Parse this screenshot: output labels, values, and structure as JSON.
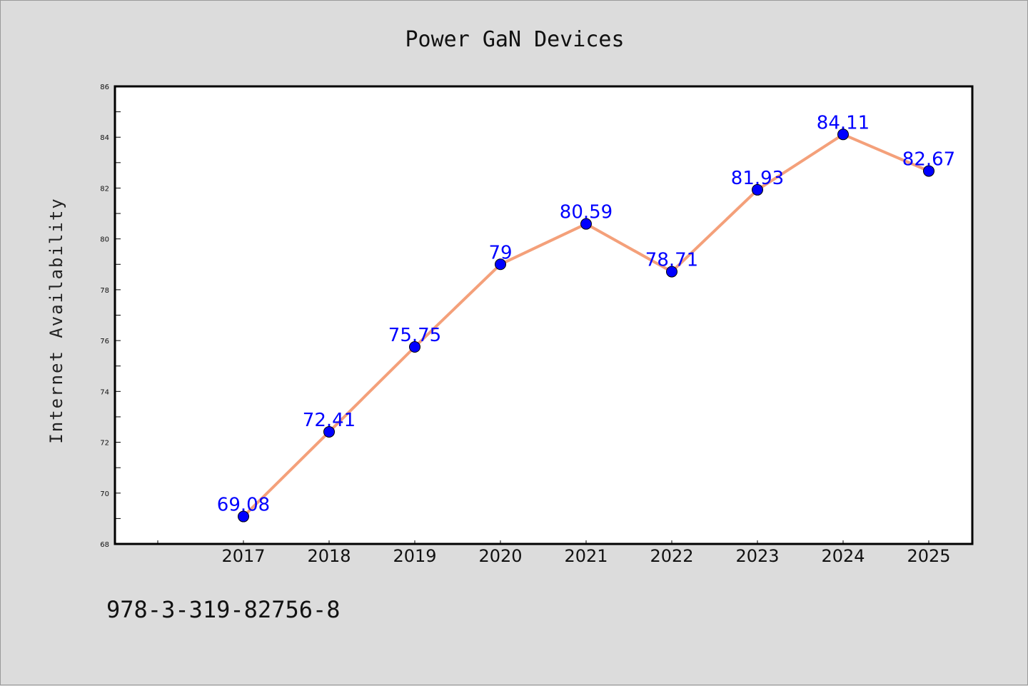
{
  "chart_data": {
    "type": "line",
    "title": "Power GaN Devices",
    "xlabel": "",
    "ylabel": "Internet Availability",
    "categories": [
      "2017",
      "2018",
      "2019",
      "2020",
      "2021",
      "2022",
      "2023",
      "2024",
      "2025"
    ],
    "series": [
      {
        "values": [
          69.08,
          72.41,
          75.75,
          79,
          80.59,
          78.71,
          81.93,
          84.11,
          82.67
        ],
        "data_labels": [
          "69.08",
          "72.41",
          "75.75",
          "79",
          "80.59",
          "78.71",
          "81.93",
          "84.11",
          "82.67"
        ],
        "line_color": "#f4a07a",
        "marker_color": "#0000ff"
      }
    ],
    "ylim": [
      68,
      86
    ],
    "yticks": [
      "68",
      "70",
      "72",
      "74",
      "76",
      "78",
      "80",
      "82",
      "84",
      "86"
    ],
    "grid": false,
    "legend": "none"
  },
  "footer": {
    "isbn": "978-3-319-82756-8"
  },
  "colors": {
    "background": "#dcdcdc",
    "plot_background": "#ffffff",
    "label_color": "#0000ff"
  }
}
